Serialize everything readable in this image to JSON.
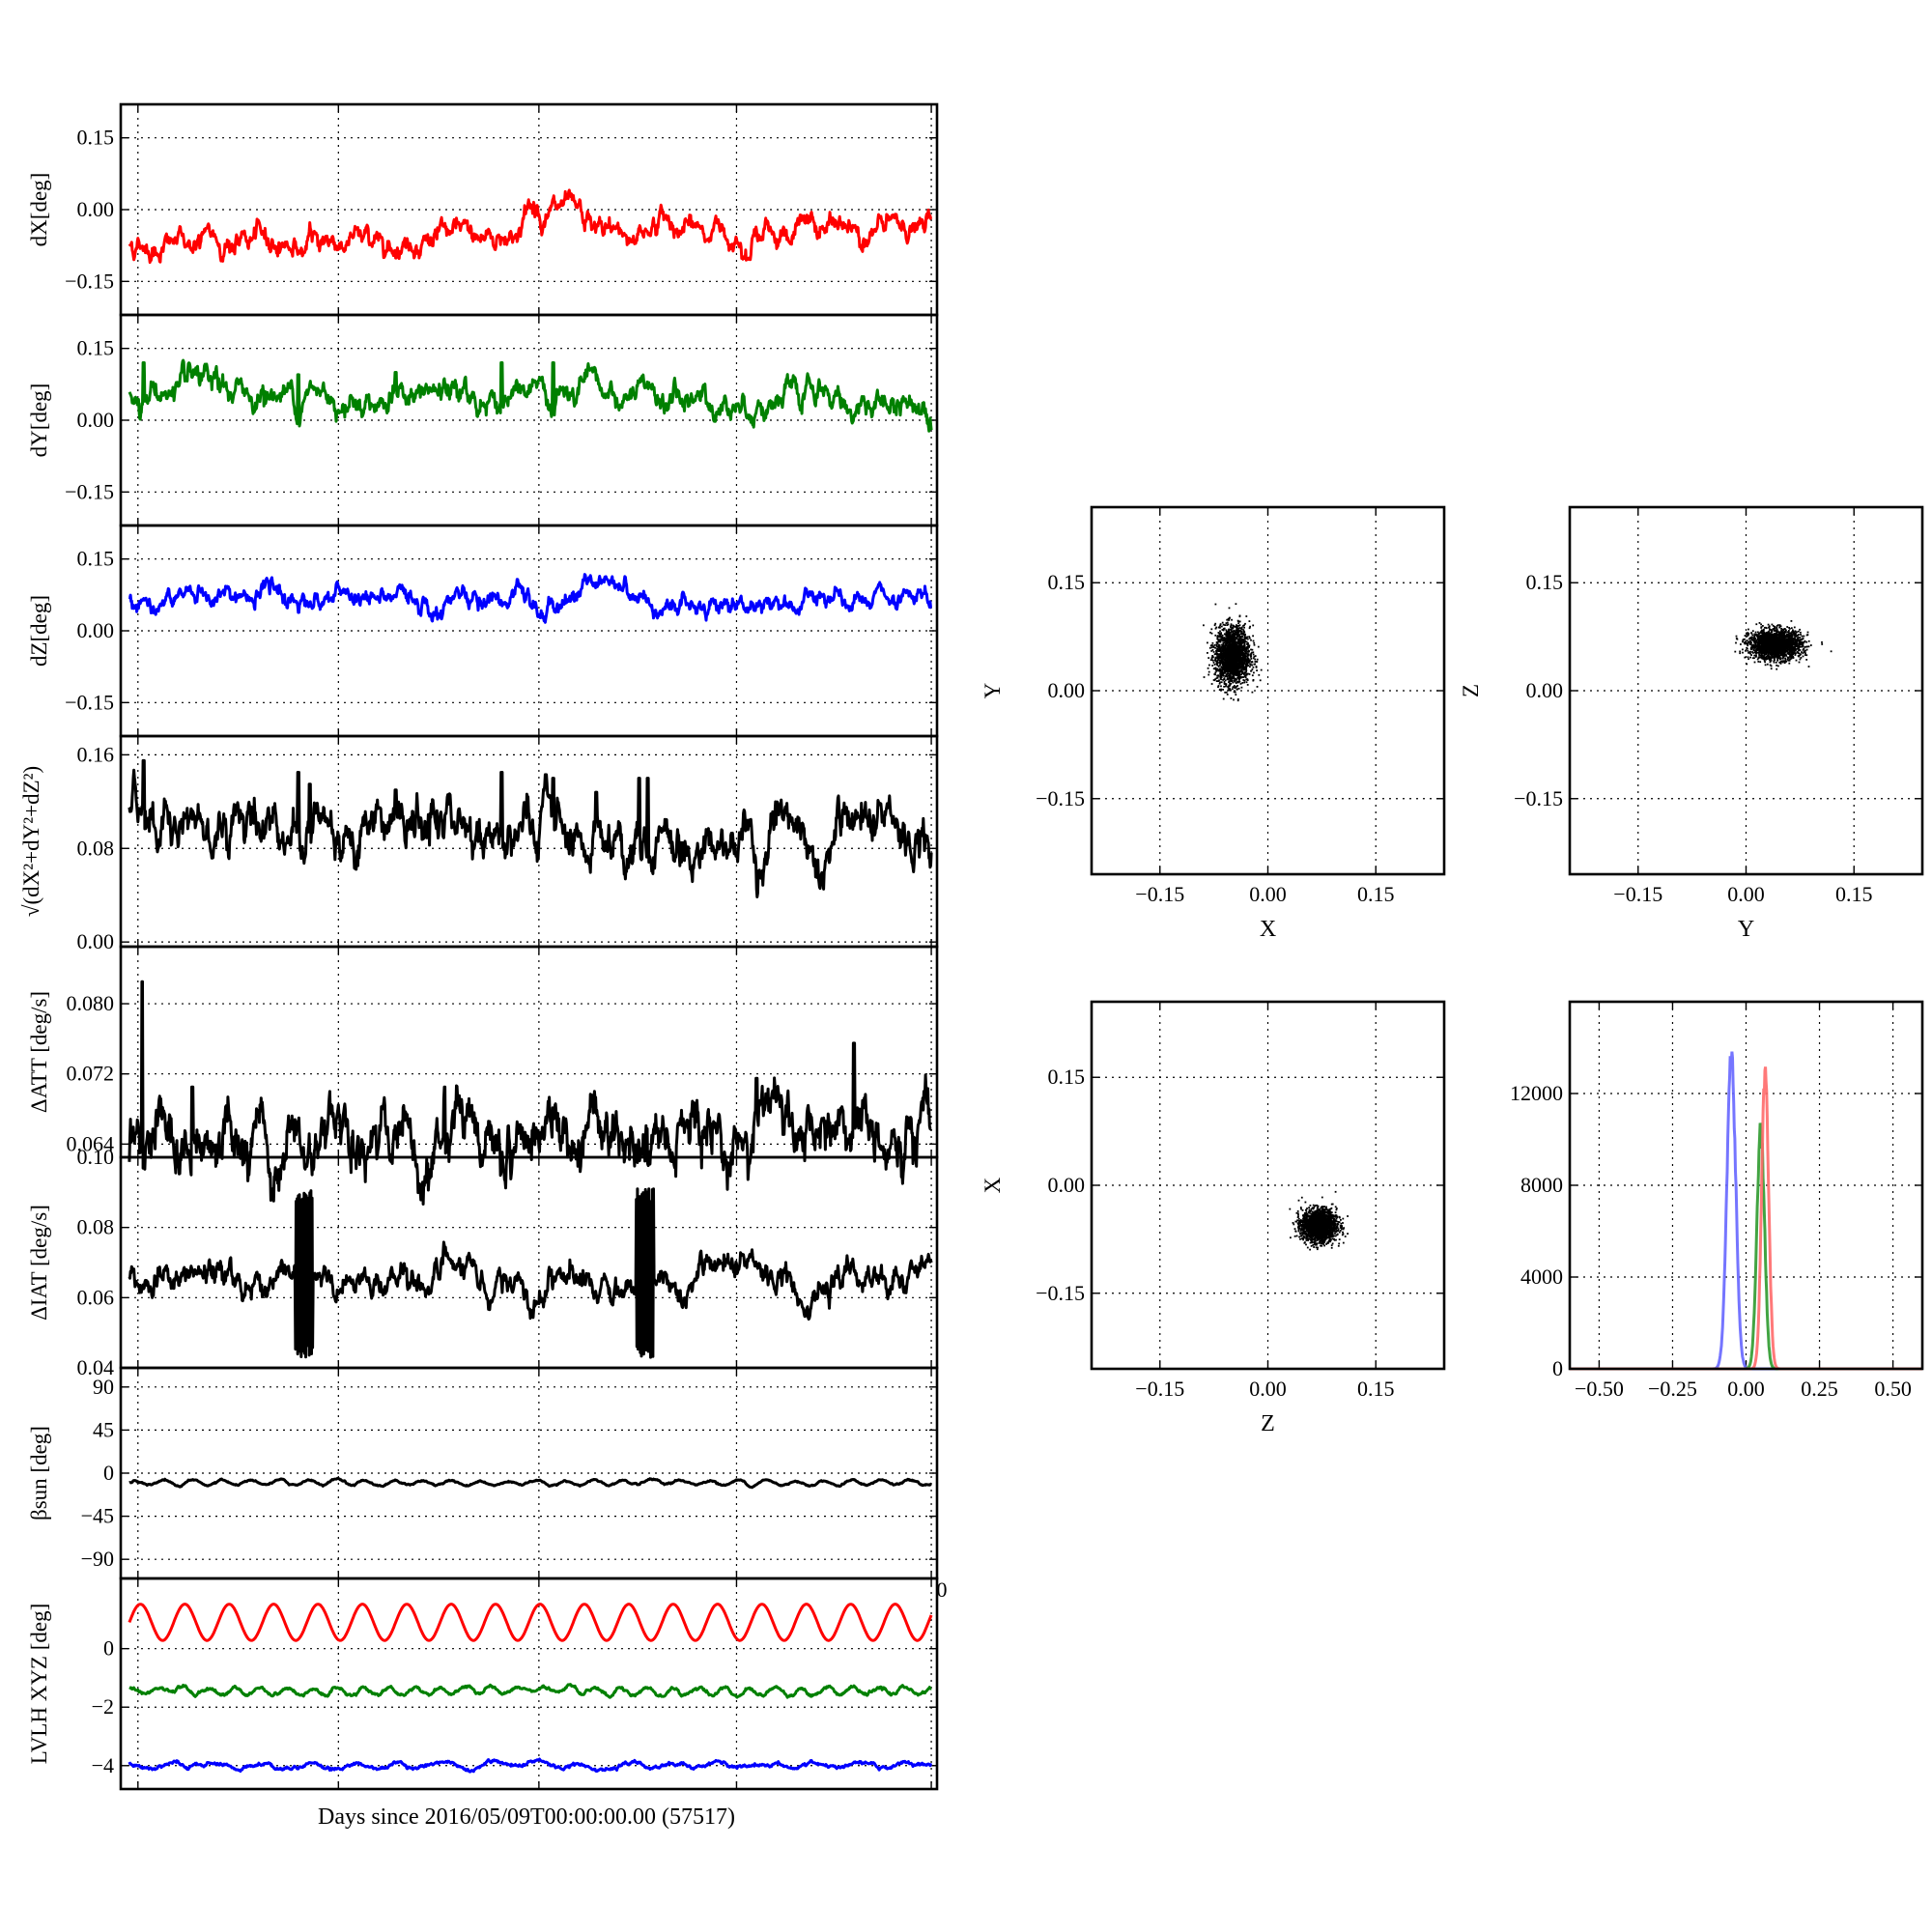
{
  "chart_data": [
    {
      "type": "line",
      "id": "dx",
      "ylabel": "dX[deg]",
      "ylim": [
        -0.22,
        0.22
      ],
      "yticks": [
        -0.15,
        0.0,
        0.15
      ],
      "ytick_labels": [
        "−0.15",
        "0.00",
        "0.15"
      ],
      "xlim": [
        0,
        28
      ],
      "grid": true,
      "series": [
        {
          "color": "#ff0000",
          "baseline": -0.072,
          "drift": 0.035,
          "noise": 0.007,
          "features": [
            [
              6.1,
              -0.02,
              0.3
            ],
            [
              14.8,
              0.05,
              0.9
            ],
            [
              18.6,
              0.03,
              0.6
            ],
            [
              14.0,
              0.035,
              0.4
            ]
          ]
        }
      ]
    },
    {
      "type": "line",
      "id": "dy",
      "ylabel": "dY[deg]",
      "ylim": [
        -0.22,
        0.22
      ],
      "yticks": [
        -0.15,
        0.0,
        0.15
      ],
      "ytick_labels": [
        "−0.15",
        "0.00",
        "0.15"
      ],
      "xlim": [
        0,
        28
      ],
      "grid": true,
      "series": [
        {
          "color": "#008000",
          "baseline": 0.058,
          "drift": -0.025,
          "noise": 0.008,
          "spikes": [
            [
              0.5,
              0.12
            ],
            [
              5.9,
              0.095
            ],
            [
              9.3,
              0.1
            ],
            [
              13.0,
              0.12
            ],
            [
              14.8,
              0.12
            ]
          ]
        }
      ]
    },
    {
      "type": "line",
      "id": "dz",
      "ylabel": "dZ[deg]",
      "ylim": [
        -0.22,
        0.22
      ],
      "yticks": [
        -0.15,
        0.0,
        0.15
      ],
      "ytick_labels": [
        "−0.15",
        "0.00",
        "0.15"
      ],
      "xlim": [
        0,
        28
      ],
      "grid": true,
      "series": [
        {
          "color": "#0000ff",
          "baseline": 0.072,
          "drift": -0.02,
          "noise": 0.006,
          "features": [
            [
              17.0,
              0.045,
              0.7
            ],
            [
              14.3,
              -0.03,
              0.4
            ],
            [
              16.0,
              0.04,
              0.5
            ]
          ]
        }
      ]
    },
    {
      "type": "line",
      "id": "dr",
      "ylabel": "√(dX²+dY²+dZ²)",
      "ylim": [
        -0.004,
        0.176
      ],
      "yticks": [
        0.0,
        0.08,
        0.16
      ],
      "ytick_labels": [
        "0.00",
        "0.08",
        "0.16"
      ],
      "xlim": [
        0,
        28
      ],
      "grid": true,
      "series": [
        {
          "color": "#000000",
          "baseline": 0.11,
          "drift": -0.03,
          "noise": 0.006,
          "spikes": [
            [
              0.5,
              0.155
            ],
            [
              5.9,
              0.145
            ],
            [
              6.3,
              0.135
            ],
            [
              9.3,
              0.13
            ],
            [
              13.0,
              0.145
            ],
            [
              14.8,
              0.14
            ],
            [
              16.3,
              0.128
            ],
            [
              17.8,
              0.14
            ],
            [
              18.1,
              0.14
            ]
          ]
        }
      ]
    },
    {
      "type": "line",
      "id": "datt",
      "ylabel": "ΔATT [deg/s]",
      "ylim": [
        0.0625,
        0.0865
      ],
      "yticks": [
        0.064,
        0.072,
        0.08
      ],
      "ytick_labels": [
        "0.064",
        "0.072",
        "0.080"
      ],
      "xlim": [
        0,
        28
      ],
      "grid": true,
      "series": [
        {
          "color": "#000000",
          "baseline": 0.0646,
          "drift": 0.0,
          "noise": 0.0009,
          "spikes": [
            [
              0.45,
              0.0825
            ],
            [
              2.2,
              0.0705
            ],
            [
              11.0,
              0.0705
            ],
            [
              21.9,
              0.0715
            ],
            [
              25.3,
              0.0755
            ]
          ]
        }
      ]
    },
    {
      "type": "line",
      "id": "diat",
      "ylabel": "ΔIAT [deg/s]",
      "ylim": [
        0.04,
        0.1
      ],
      "yticks": [
        0.04,
        0.06,
        0.08,
        0.1
      ],
      "ytick_labels": [
        "0.04",
        "0.06",
        "0.08",
        "0.10"
      ],
      "xlim": [
        0,
        28
      ],
      "grid": true,
      "series": [
        {
          "color": "#000000",
          "baseline": 0.065,
          "drift": 0.0,
          "noise": 0.0012,
          "bursts": [
            [
              5.8,
              6.4,
              0.043,
              0.091
            ],
            [
              17.7,
              18.3,
              0.043,
              0.091
            ]
          ]
        }
      ]
    },
    {
      "type": "line",
      "id": "bsun",
      "ylabel": "βsun [deg]",
      "ylim": [
        -110,
        110
      ],
      "yticks": [
        -90,
        -45,
        0,
        45,
        90
      ],
      "ytick_labels": [
        "−90",
        "−45",
        "0",
        "45",
        "90"
      ],
      "xlim": [
        0,
        28
      ],
      "grid": true,
      "series": [
        {
          "color": "#000000",
          "baseline": -10,
          "amp": 2.5,
          "period": 1.0,
          "noise": 0.3
        }
      ]
    },
    {
      "type": "line",
      "id": "lvlh",
      "ylabel": "LVLH XYZ [deg]",
      "ylim": [
        -4.8,
        2.4
      ],
      "yticks": [
        -4,
        -2,
        0
      ],
      "ytick_labels": [
        "−4",
        "−2",
        "0"
      ],
      "xlim": [
        0,
        28
      ],
      "grid": true,
      "series": [
        {
          "color": "#ff0000",
          "baseline": 0.9,
          "amp": 0.62,
          "period": 1.55,
          "noise": 0.0
        },
        {
          "color": "#008000",
          "baseline": -1.45,
          "amp": 0.12,
          "period": 0.9,
          "noise": 0.02
        },
        {
          "color": "#0000ff",
          "baseline": -4.0,
          "amp": 0.08,
          "period": 1.6,
          "noise": 0.02
        }
      ]
    },
    {
      "type": "scatter",
      "id": "xy",
      "xlabel": "X",
      "ylabel": "Y",
      "xlim": [
        -0.245,
        0.245
      ],
      "ylim": [
        -0.255,
        0.255
      ],
      "ticks": [
        -0.15,
        0.0,
        0.15
      ],
      "tick_labels": [
        "−0.15",
        "0.00",
        "0.15"
      ],
      "grid": true,
      "cluster": {
        "cx": -0.05,
        "cy": 0.05,
        "sx": 0.012,
        "sy": 0.02,
        "n": 2200
      }
    },
    {
      "type": "scatter",
      "id": "yz",
      "xlabel": "Y",
      "ylabel": "Z",
      "xlim": [
        -0.245,
        0.245
      ],
      "ylim": [
        -0.255,
        0.255
      ],
      "ticks": [
        -0.15,
        0.0,
        0.15
      ],
      "tick_labels": [
        "−0.15",
        "0.00",
        "0.15"
      ],
      "grid": true,
      "cluster": {
        "cx": 0.04,
        "cy": 0.065,
        "sx": 0.018,
        "sy": 0.01,
        "n": 2200
      }
    },
    {
      "type": "scatter",
      "id": "zx",
      "xlabel": "Z",
      "ylabel": "X",
      "xlim": [
        -0.245,
        0.245
      ],
      "ylim": [
        -0.255,
        0.255
      ],
      "ticks": [
        -0.15,
        0.0,
        0.15
      ],
      "tick_labels": [
        "−0.15",
        "0.00",
        "0.15"
      ],
      "grid": true,
      "cluster": {
        "cx": 0.07,
        "cy": -0.055,
        "sx": 0.012,
        "sy": 0.011,
        "n": 2200
      }
    },
    {
      "type": "bar",
      "id": "hist",
      "xlim": [
        -0.6,
        0.6
      ],
      "ylim": [
        0,
        16000
      ],
      "xticks": [
        -0.5,
        -0.25,
        0.0,
        0.25,
        0.5
      ],
      "xtick_labels": [
        "−0.50",
        "−0.25",
        "0.00",
        "0.25",
        "0.50"
      ],
      "yticks": [
        0,
        4000,
        8000,
        12000
      ],
      "ytick_labels": [
        "0",
        "4000",
        "8000",
        "12000"
      ],
      "grid": true,
      "series": [
        {
          "color": "#6666ff",
          "center": -0.05,
          "sigma": 0.015,
          "peak": 14200
        },
        {
          "color": "#2e9a2e",
          "center": 0.05,
          "sigma": 0.013,
          "peak": 10900
        },
        {
          "color": "#ff6a6a",
          "center": 0.065,
          "sigma": 0.012,
          "peak": 13400
        }
      ]
    }
  ],
  "shared_xlabel": "Days since 2016/05/09T00:00:00.00 (57517)",
  "stray_tick_label": "0"
}
